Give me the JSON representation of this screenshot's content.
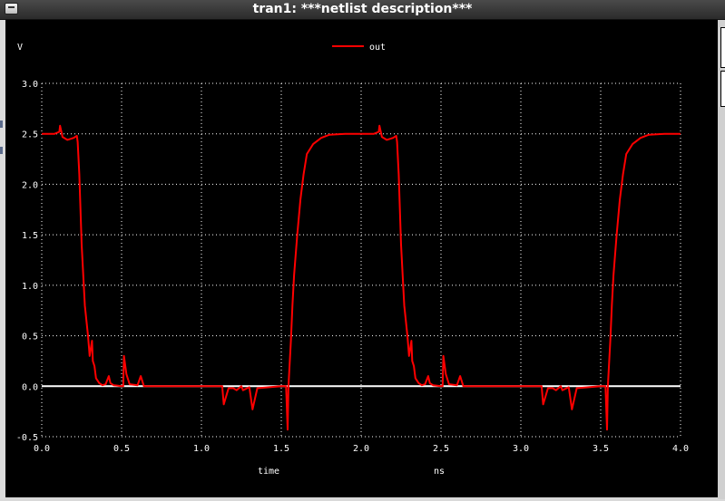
{
  "window": {
    "title": "tran1: ***netlist description***"
  },
  "chart_data": {
    "type": "line",
    "ylabel": "V",
    "xlabel": "time",
    "xunit": "ns",
    "xlim": [
      0.0,
      4.0
    ],
    "ylim": [
      -0.5,
      3.0
    ],
    "xticks": [
      "0.0",
      "0.5",
      "1.0",
      "1.5",
      "2.0",
      "2.5",
      "3.0",
      "3.5",
      "4.0"
    ],
    "yticks": [
      "-0.5",
      "0.0",
      "0.5",
      "1.0",
      "1.5",
      "2.0",
      "2.5",
      "3.0"
    ],
    "grid": true,
    "legend_position": "top-center",
    "background": "#000000",
    "grid_color": "#ffffff",
    "zero_line_color": "#ffffff",
    "series": [
      {
        "name": "out",
        "color": "#ff0000",
        "x": [
          0.0,
          0.08,
          0.11,
          0.115,
          0.13,
          0.16,
          0.2,
          0.22,
          0.225,
          0.235,
          0.25,
          0.27,
          0.29,
          0.3,
          0.315,
          0.32,
          0.33,
          0.34,
          0.36,
          0.38,
          0.4,
          0.42,
          0.43,
          0.45,
          0.5,
          0.51,
          0.515,
          0.53,
          0.55,
          0.6,
          0.62,
          0.64,
          1.1,
          1.13,
          1.14,
          1.17,
          1.2,
          1.22,
          1.25,
          1.26,
          1.3,
          1.32,
          1.35,
          1.5,
          1.53,
          1.54,
          1.545,
          1.55,
          1.56,
          1.57,
          1.58,
          1.6,
          1.62,
          1.64,
          1.65,
          1.66,
          1.7,
          1.75,
          1.8,
          1.9,
          2.0,
          2.08,
          2.11,
          2.115,
          2.13,
          2.16,
          2.2,
          2.22,
          2.225,
          2.235,
          2.25,
          2.27,
          2.29,
          2.3,
          2.315,
          2.32,
          2.33,
          2.34,
          2.36,
          2.38,
          2.4,
          2.42,
          2.43,
          2.45,
          2.5,
          2.51,
          2.515,
          2.53,
          2.55,
          2.6,
          2.62,
          2.64,
          3.1,
          3.13,
          3.14,
          3.17,
          3.2,
          3.22,
          3.25,
          3.26,
          3.3,
          3.32,
          3.35,
          3.5,
          3.53,
          3.54,
          3.545,
          3.55,
          3.56,
          3.57,
          3.58,
          3.6,
          3.62,
          3.64,
          3.65,
          3.66,
          3.7,
          3.75,
          3.8,
          3.9,
          4.0
        ],
        "y": [
          2.5,
          2.5,
          2.52,
          2.58,
          2.47,
          2.44,
          2.46,
          2.48,
          2.42,
          2.1,
          1.4,
          0.8,
          0.5,
          0.3,
          0.45,
          0.25,
          0.2,
          0.08,
          0.03,
          0.01,
          0.02,
          0.1,
          0.03,
          0.01,
          0.0,
          0.0,
          0.3,
          0.12,
          0.02,
          0.01,
          0.1,
          0.0,
          0.0,
          0.0,
          -0.18,
          -0.02,
          -0.02,
          -0.04,
          0.0,
          -0.04,
          -0.01,
          -0.23,
          -0.02,
          0.0,
          0.0,
          -0.43,
          0.0,
          0.15,
          0.45,
          0.8,
          1.1,
          1.5,
          1.85,
          2.1,
          2.2,
          2.3,
          2.4,
          2.46,
          2.49,
          2.5,
          2.5,
          2.5,
          2.52,
          2.58,
          2.47,
          2.44,
          2.46,
          2.48,
          2.42,
          2.1,
          1.4,
          0.8,
          0.5,
          0.3,
          0.45,
          0.25,
          0.2,
          0.08,
          0.03,
          0.01,
          0.02,
          0.1,
          0.03,
          0.01,
          0.0,
          0.0,
          0.3,
          0.12,
          0.02,
          0.01,
          0.1,
          0.0,
          0.0,
          0.0,
          -0.18,
          -0.02,
          -0.02,
          -0.04,
          0.0,
          -0.04,
          -0.01,
          -0.23,
          -0.02,
          0.0,
          0.0,
          -0.43,
          0.0,
          0.15,
          0.45,
          0.8,
          1.1,
          1.5,
          1.85,
          2.1,
          2.2,
          2.3,
          2.4,
          2.46,
          2.49,
          2.5,
          2.5
        ]
      }
    ]
  }
}
